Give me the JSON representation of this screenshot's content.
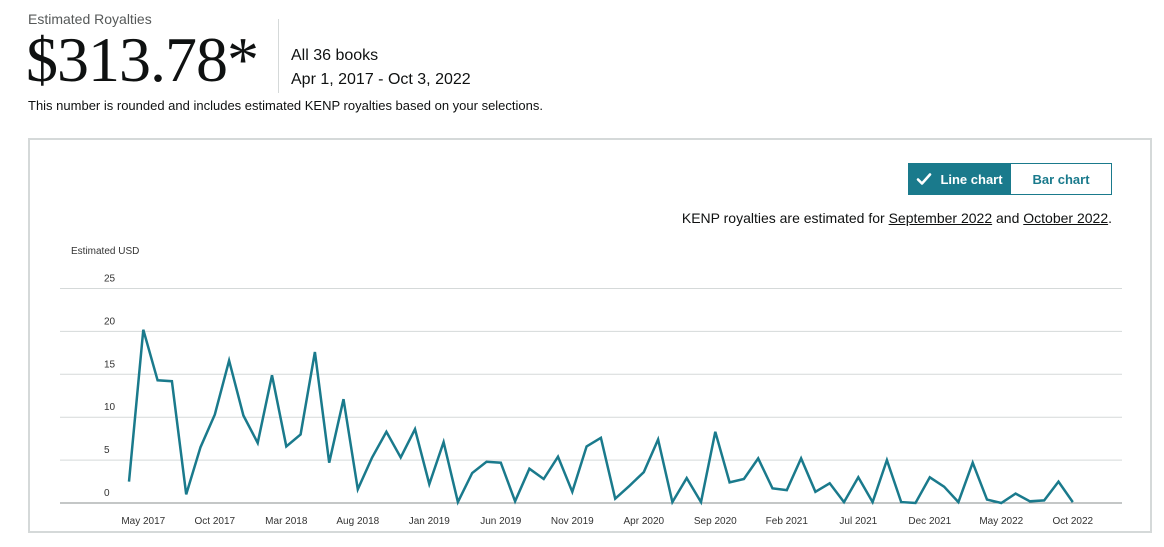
{
  "header": {
    "eyebrow": "Estimated Royalties",
    "amount": "$313.78*",
    "scope": "All 36 books",
    "date_range": "Apr 1, 2017 - Oct 3, 2022",
    "note": "This number is rounded and includes estimated KENP royalties based on your selections."
  },
  "toggle": {
    "line_label": "Line chart",
    "bar_label": "Bar chart",
    "selected": "line"
  },
  "kenp_note": {
    "prefix": "KENP royalties are estimated for",
    "link1": "September 2022",
    "middle": "and",
    "link2": "October 2022",
    "suffix": "."
  },
  "colors": {
    "line": "#1a7a8c",
    "accent": "#1a7a8c",
    "grid": "#d5d9d9"
  },
  "chart_data": {
    "type": "line",
    "ylabel": "Estimated USD",
    "ylim": [
      0,
      25
    ],
    "yticks": [
      0,
      5,
      10,
      15,
      20,
      25
    ],
    "grid": true,
    "x_tick_labels": [
      "May 2017",
      "Oct 2017",
      "Mar 2018",
      "Aug 2018",
      "Jan 2019",
      "Jun 2019",
      "Nov 2019",
      "Apr 2020",
      "Sep 2020",
      "Feb 2021",
      "Jul 2021",
      "Dec 2021",
      "May 2022",
      "Oct 2022"
    ],
    "x_tick_indices": [
      1,
      6,
      11,
      16,
      21,
      26,
      31,
      36,
      41,
      46,
      51,
      56,
      61,
      66
    ],
    "series": [
      {
        "values": [
          2.5,
          20.2,
          14.3,
          14.2,
          1.0,
          6.5,
          10.3,
          16.6,
          10.2,
          7.0,
          14.9,
          6.6,
          8.0,
          17.6,
          4.7,
          12.1,
          1.6,
          5.3,
          8.3,
          5.3,
          8.6,
          2.2,
          7.1,
          0.1,
          3.5,
          4.8,
          4.7,
          0.2,
          4.0,
          2.8,
          5.4,
          1.3,
          6.6,
          7.6,
          0.5,
          2.0,
          3.6,
          7.4,
          0.1,
          2.9,
          0.1,
          8.3,
          2.4,
          2.8,
          5.2,
          1.7,
          1.5,
          5.2,
          1.3,
          2.3,
          0.1,
          3.0,
          0.1,
          5.0,
          0.1,
          0.0,
          3.0,
          1.9,
          0.1,
          4.7,
          0.4,
          0.0,
          1.1,
          0.2,
          0.3,
          2.5,
          0.1
        ]
      }
    ]
  }
}
